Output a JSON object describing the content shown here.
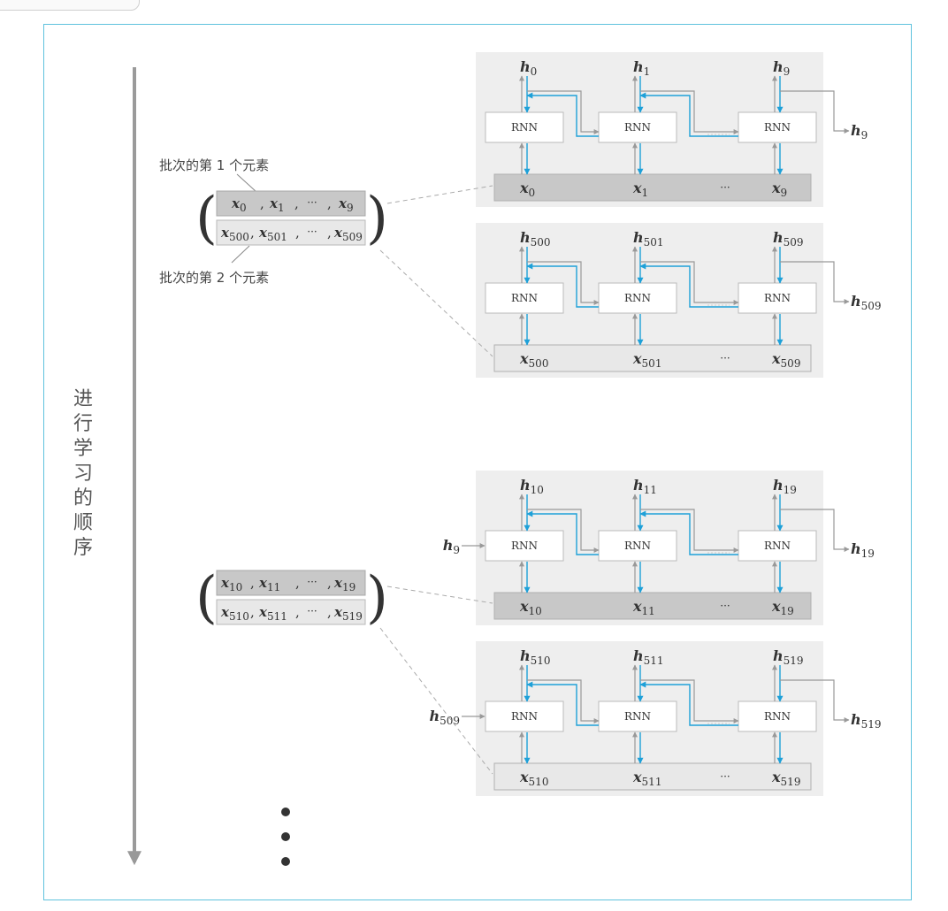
{
  "order_label": "进行学习的顺序",
  "annotations": {
    "first_element": "批次的第 1 个元素",
    "second_element": "批次的第 2 个元素"
  },
  "rnn_label": "RNN",
  "ellipsis": "···",
  "comma": ",",
  "colors": {
    "frame": "#5fc2dd",
    "forward_arrow": "#999999",
    "backward_arrow": "#1ea0d8",
    "panel_bg": "#eeeeee",
    "input_dark": "#c8c8c8",
    "input_light": "#e8e8e8"
  },
  "batches": [
    {
      "row1": [
        "0",
        "1",
        "9"
      ],
      "row2": [
        "500",
        "501",
        "509"
      ]
    },
    {
      "row1": [
        "10",
        "11",
        "19"
      ],
      "row2": [
        "510",
        "511",
        "519"
      ]
    }
  ],
  "panels": [
    {
      "id": "p1",
      "hidden_in": "",
      "inputs": [
        "0",
        "1",
        "9"
      ],
      "outputs": [
        "0",
        "1",
        "9"
      ],
      "hidden_out": "9"
    },
    {
      "id": "p2",
      "hidden_in": "",
      "inputs": [
        "500",
        "501",
        "509"
      ],
      "outputs": [
        "500",
        "501",
        "509"
      ],
      "hidden_out": "509"
    },
    {
      "id": "p3",
      "hidden_in": "9",
      "inputs": [
        "10",
        "11",
        "19"
      ],
      "outputs": [
        "10",
        "11",
        "19"
      ],
      "hidden_out": "19"
    },
    {
      "id": "p4",
      "hidden_in": "509",
      "inputs": [
        "510",
        "511",
        "519"
      ],
      "outputs": [
        "510",
        "511",
        "519"
      ],
      "hidden_out": "519"
    }
  ]
}
